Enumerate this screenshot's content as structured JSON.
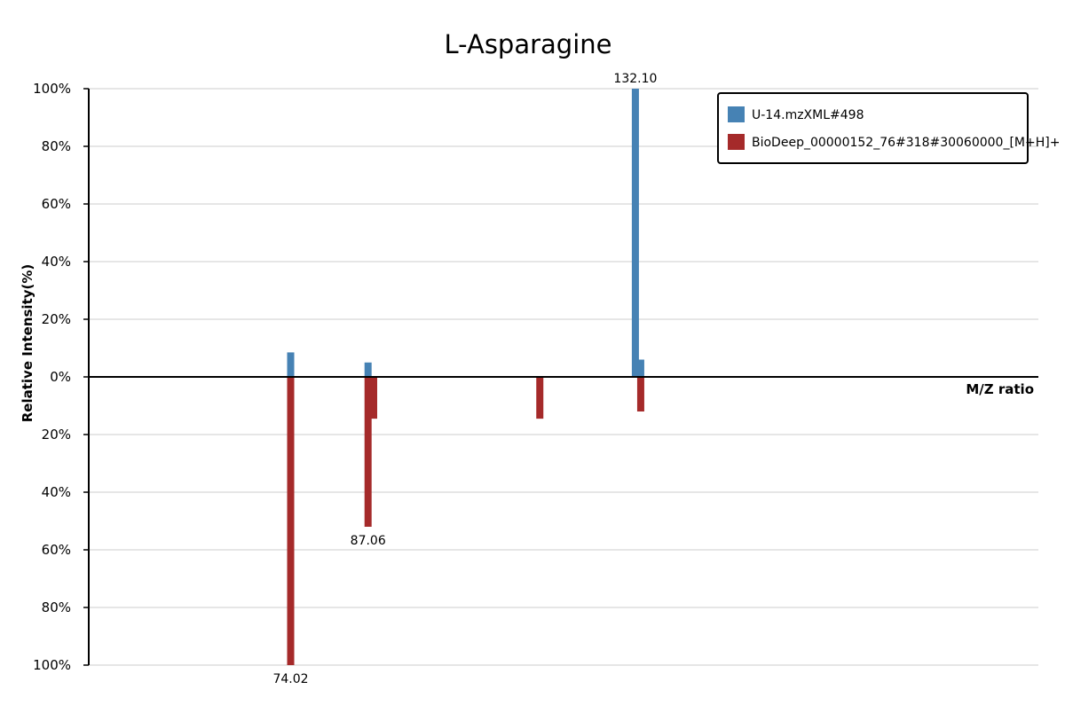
{
  "chart_data": {
    "type": "bar",
    "title": "L-Asparagine",
    "xlabel": "M/Z ratio",
    "ylabel": "Relative Intensity(%)",
    "ylim": [
      -100,
      100
    ],
    "xlim": [
      40,
      200
    ],
    "y_ticks": [
      "100%",
      "80%",
      "60%",
      "40%",
      "20%",
      "0%",
      "20%",
      "40%",
      "60%",
      "80%",
      "100%"
    ],
    "grid": true,
    "legend_position": "top-right",
    "series": [
      {
        "name": "U-14.mzXML#498",
        "color": "#4682b4",
        "direction": "up",
        "x": [
          74.02,
          87.06,
          132.1,
          133.0
        ],
        "values": [
          8.5,
          5,
          100,
          6
        ]
      },
      {
        "name": "BioDeep_00000152_76#318#30060000_[M+H]+",
        "color": "#a52a2a",
        "direction": "down",
        "x": [
          74.02,
          87.06,
          88.0,
          116.0,
          133.0
        ],
        "values": [
          100,
          52,
          14.5,
          14.5,
          12
        ]
      }
    ],
    "annotations": [
      {
        "text": "132.10",
        "x": 132.1,
        "series": 0
      },
      {
        "text": "87.06",
        "x": 87.06,
        "series": 1
      },
      {
        "text": "74.02",
        "x": 74.02,
        "series": 1
      }
    ]
  }
}
